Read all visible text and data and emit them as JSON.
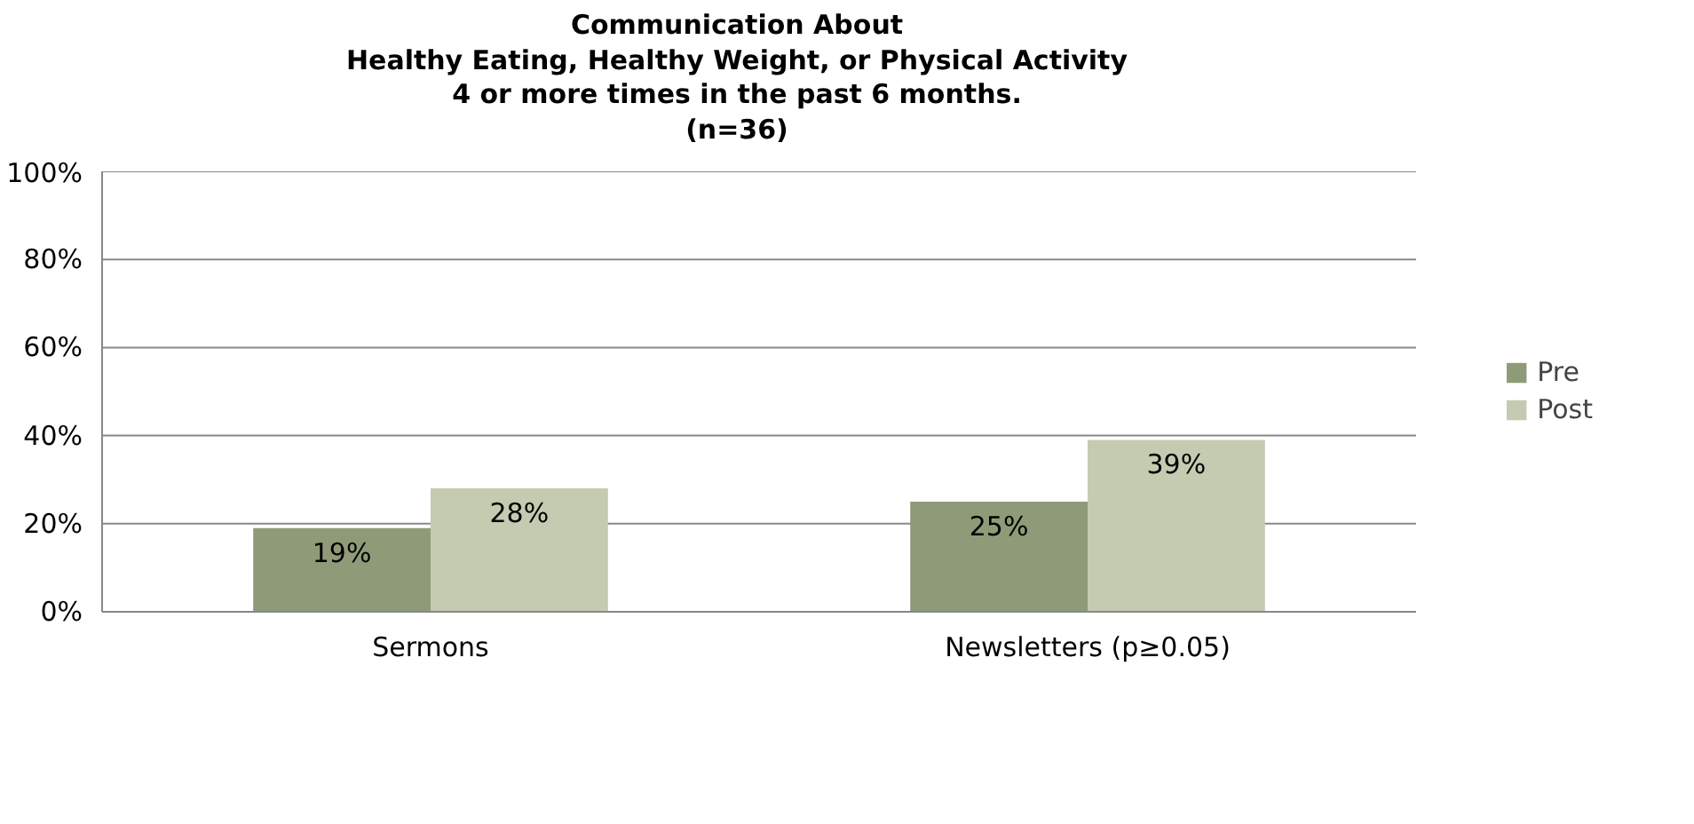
{
  "chart_data": {
    "type": "bar",
    "title": "Communication About\nHealthy Eating, Healthy Weight, or Physical Activity\n4 or more times in the past 6 months.\n(n=36)",
    "categories": [
      "Sermons",
      "Newsletters (p≥0.05)"
    ],
    "series": [
      {
        "name": "Pre",
        "color": "#8f9b78",
        "values": [
          19,
          25
        ],
        "value_labels": [
          "19%",
          "25%"
        ]
      },
      {
        "name": "Post",
        "color": "#c4cbb1",
        "values": [
          28,
          39
        ],
        "value_labels": [
          "28%",
          "39%"
        ]
      }
    ],
    "ylim": [
      0,
      100
    ],
    "yticks": [
      {
        "value": 0,
        "label": "0%"
      },
      {
        "value": 20,
        "label": "20%"
      },
      {
        "value": 40,
        "label": "40%"
      },
      {
        "value": 60,
        "label": "60%"
      },
      {
        "value": 80,
        "label": "80%"
      },
      {
        "value": 100,
        "label": "100%"
      }
    ],
    "grid": "y",
    "legend": "right"
  }
}
